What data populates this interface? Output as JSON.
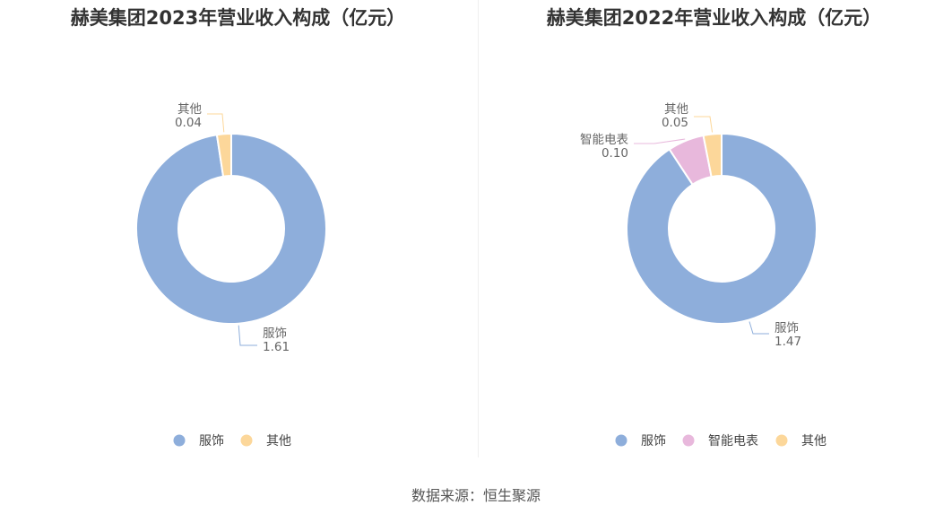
{
  "charts": [
    {
      "title": "赫美集团2023年营业收入构成（亿元）",
      "legend": [
        "服饰",
        "其他"
      ]
    },
    {
      "title": "赫美集团2022年营业收入构成（亿元）",
      "legend": [
        "服饰",
        "智能电表",
        "其他"
      ]
    }
  ],
  "source": "数据来源：恒生聚源",
  "colors": {
    "服饰": "#8eaedb",
    "智能电表": "#e8b8dc",
    "其他": "#fcd79a"
  },
  "chart_data": [
    {
      "type": "pie",
      "donut": true,
      "title": "赫美集团2023年营业收入构成（亿元）",
      "categories": [
        "服饰",
        "其他"
      ],
      "values": [
        1.61,
        0.04
      ],
      "value_labels": [
        "1.61",
        "0.04"
      ],
      "legend_position": "bottom"
    },
    {
      "type": "pie",
      "donut": true,
      "title": "赫美集团2022年营业收入构成（亿元）",
      "categories": [
        "服饰",
        "智能电表",
        "其他"
      ],
      "values": [
        1.47,
        0.1,
        0.05
      ],
      "value_labels": [
        "1.47",
        "0.10",
        "0.05"
      ],
      "legend_position": "bottom"
    }
  ]
}
